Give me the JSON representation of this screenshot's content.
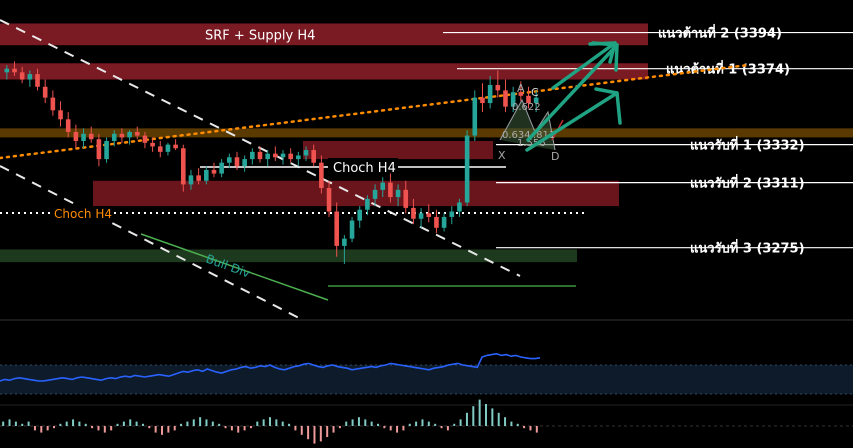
{
  "chart_data": {
    "type": "candlestick",
    "title": "",
    "xlabel": "",
    "ylabel": "",
    "ylim": [
      3235,
      3412
    ],
    "zones": [
      {
        "name": "SRF + Supply H4",
        "low": 3387,
        "high": 3399,
        "color": "#7a1a22"
      },
      {
        "name": "",
        "low": 3368,
        "high": 3377,
        "color": "#7a1a22"
      },
      {
        "name": "",
        "low": 3336,
        "high": 3341,
        "color": "#5a3a00"
      },
      {
        "name": "",
        "low": 3324,
        "high": 3334,
        "color": "#6a141c"
      },
      {
        "name": "",
        "low": 3298,
        "high": 3312,
        "color": "#6a141c"
      },
      {
        "name": "",
        "low": 3267,
        "high": 3274,
        "color": "#1e3a1e"
      }
    ],
    "levels": [
      {
        "label": "แนวต้านที่ 2 (3394)",
        "value": 3394
      },
      {
        "label": "แนวต้านที่ 1 (3374)",
        "value": 3374
      },
      {
        "label": "แนวรับที่ 1 (3332)",
        "value": 3332
      },
      {
        "label": "แนวรับที่ 2 (3311)",
        "value": 3311
      },
      {
        "label": "แนวรับที่ 3 (3275)",
        "value": 3275
      }
    ],
    "annotations": {
      "choch_white": "Choch H4",
      "choch_orange": "Choch H4",
      "bull_div": "Bull Div",
      "pattern_points": [
        "A",
        "C",
        "X",
        "D"
      ],
      "fib_labels": [
        "0.622",
        "0.634",
        ".811",
        "1.556"
      ]
    },
    "colors": {
      "bull": "#26a69a",
      "bear": "#ef5350",
      "arrow": "#1fa383",
      "trend_orange": "#ff8c00",
      "rsi": "#2962ff"
    },
    "candles": [
      [
        3372,
        3376,
        3368,
        3374
      ],
      [
        3374,
        3378,
        3370,
        3372
      ],
      [
        3372,
        3375,
        3366,
        3368
      ],
      [
        3368,
        3373,
        3364,
        3371
      ],
      [
        3371,
        3374,
        3362,
        3364
      ],
      [
        3364,
        3368,
        3355,
        3358
      ],
      [
        3358,
        3362,
        3348,
        3351
      ],
      [
        3351,
        3356,
        3342,
        3346
      ],
      [
        3346,
        3350,
        3336,
        3339
      ],
      [
        3339,
        3343,
        3330,
        3334
      ],
      [
        3334,
        3341,
        3330,
        3338
      ],
      [
        3338,
        3342,
        3333,
        3335
      ],
      [
        3335,
        3338,
        3320,
        3324
      ],
      [
        3324,
        3336,
        3322,
        3334
      ],
      [
        3334,
        3340,
        3331,
        3338
      ],
      [
        3338,
        3341,
        3333,
        3336
      ],
      [
        3336,
        3340,
        3332,
        3339
      ],
      [
        3339,
        3342,
        3335,
        3337
      ],
      [
        3337,
        3339,
        3330,
        3333
      ],
      [
        3333,
        3336,
        3328,
        3331
      ],
      [
        3331,
        3334,
        3325,
        3328
      ],
      [
        3328,
        3333,
        3326,
        3332
      ],
      [
        3332,
        3335,
        3329,
        3330
      ],
      [
        3330,
        3332,
        3306,
        3310
      ],
      [
        3310,
        3318,
        3307,
        3315
      ],
      [
        3315,
        3319,
        3310,
        3312
      ],
      [
        3312,
        3320,
        3310,
        3318
      ],
      [
        3318,
        3322,
        3314,
        3316
      ],
      [
        3316,
        3324,
        3314,
        3322
      ],
      [
        3322,
        3327,
        3319,
        3325
      ],
      [
        3325,
        3328,
        3318,
        3320
      ],
      [
        3320,
        3326,
        3317,
        3324
      ],
      [
        3324,
        3330,
        3321,
        3328
      ],
      [
        3328,
        3331,
        3322,
        3324
      ],
      [
        3324,
        3329,
        3320,
        3327
      ],
      [
        3327,
        3331,
        3323,
        3325
      ],
      [
        3325,
        3329,
        3321,
        3327
      ],
      [
        3327,
        3330,
        3322,
        3324
      ],
      [
        3324,
        3328,
        3320,
        3326
      ],
      [
        3326,
        3331,
        3323,
        3329
      ],
      [
        3329,
        3332,
        3320,
        3322
      ],
      [
        3322,
        3326,
        3305,
        3308
      ],
      [
        3308,
        3312,
        3292,
        3295
      ],
      [
        3295,
        3300,
        3270,
        3276
      ],
      [
        3276,
        3282,
        3266,
        3280
      ],
      [
        3280,
        3292,
        3278,
        3290
      ],
      [
        3290,
        3298,
        3286,
        3296
      ],
      [
        3296,
        3304,
        3293,
        3302
      ],
      [
        3302,
        3310,
        3298,
        3307
      ],
      [
        3307,
        3314,
        3303,
        3311
      ],
      [
        3311,
        3316,
        3300,
        3303
      ],
      [
        3303,
        3310,
        3298,
        3307
      ],
      [
        3307,
        3312,
        3294,
        3297
      ],
      [
        3297,
        3302,
        3288,
        3291
      ],
      [
        3291,
        3297,
        3286,
        3294
      ],
      [
        3294,
        3299,
        3289,
        3292
      ],
      [
        3292,
        3296,
        3283,
        3286
      ],
      [
        3286,
        3294,
        3284,
        3292
      ],
      [
        3292,
        3298,
        3288,
        3295
      ],
      [
        3295,
        3302,
        3292,
        3300
      ],
      [
        3300,
        3340,
        3298,
        3337
      ],
      [
        3337,
        3362,
        3334,
        3358
      ],
      [
        3358,
        3366,
        3350,
        3355
      ],
      [
        3355,
        3370,
        3352,
        3365
      ],
      [
        3365,
        3373,
        3358,
        3362
      ],
      [
        3362,
        3368,
        3350,
        3353
      ],
      [
        3353,
        3364,
        3350,
        3361
      ],
      [
        3361,
        3367,
        3356,
        3359
      ],
      [
        3359,
        3364,
        3352,
        3355
      ],
      [
        3355,
        3362,
        3350,
        3358
      ]
    ],
    "rsi_line": [
      30,
      32,
      31,
      33,
      34,
      33,
      32,
      31,
      30,
      30,
      31,
      32,
      33,
      34,
      33,
      32,
      34,
      35,
      34,
      33,
      32,
      31,
      33,
      34,
      33,
      35,
      36,
      35,
      37,
      36,
      35,
      36,
      37,
      38,
      37,
      36,
      38,
      40,
      42,
      41,
      43,
      44,
      42,
      45,
      43,
      41,
      40,
      42,
      44,
      45,
      47,
      48,
      46,
      47,
      49,
      48,
      50,
      47,
      45,
      44,
      46,
      48,
      49,
      51,
      52,
      50,
      48,
      47,
      49,
      50,
      48,
      47,
      46,
      44,
      45,
      46,
      47,
      48,
      47,
      49,
      50,
      52,
      51,
      50,
      49,
      48,
      47,
      46,
      45,
      44,
      46,
      47,
      48,
      50,
      51,
      52,
      50,
      49,
      48,
      47,
      60,
      62,
      63,
      64,
      62,
      63,
      61,
      62,
      60,
      59,
      58,
      58,
      59
    ],
    "hist": [
      2,
      3,
      2,
      1,
      2,
      -2,
      -3,
      -2,
      -1,
      1,
      2,
      3,
      2,
      1,
      -1,
      -2,
      -3,
      -2,
      1,
      2,
      3,
      2,
      1,
      -1,
      -3,
      -4,
      -3,
      -2,
      1,
      2,
      3,
      4,
      3,
      2,
      1,
      -1,
      -2,
      -3,
      -2,
      -1,
      2,
      3,
      4,
      3,
      2,
      1,
      -2,
      -4,
      -6,
      -8,
      -7,
      -5,
      -3,
      -1,
      2,
      3,
      4,
      3,
      2,
      1,
      -1,
      -2,
      -3,
      -2,
      1,
      2,
      3,
      2,
      1,
      -1,
      -2,
      1,
      3,
      6,
      9,
      12,
      10,
      8,
      6,
      4,
      2,
      1,
      -1,
      -2,
      -3
    ]
  }
}
